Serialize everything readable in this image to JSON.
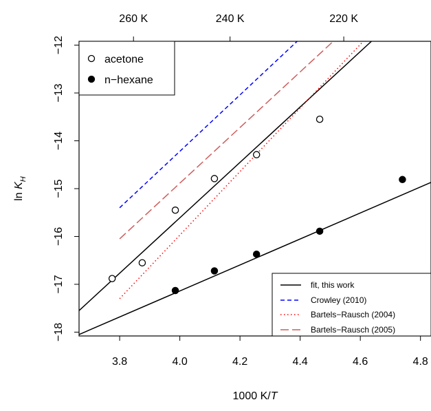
{
  "chart_data": {
    "type": "scatter",
    "xlabel_prefix": "1000 K/",
    "xlabel_italic": "T",
    "ylabel_prefix": "ln ",
    "ylabel_italic": "K",
    "ylabel_sub": "H",
    "xlim": [
      3.665,
      4.835
    ],
    "ylim": [
      -18.08,
      -11.92
    ],
    "x_ticks": [
      "3.8",
      "4.0",
      "4.2",
      "4.4",
      "4.6",
      "4.8"
    ],
    "y_ticks": [
      "-18",
      "-17",
      "-16",
      "-15",
      "-14",
      "-13",
      "-12"
    ],
    "top_axis_ticks": [
      {
        "label": "260 K",
        "x": 3.846
      },
      {
        "label": "240 K",
        "x": 4.167
      },
      {
        "label": "220 K",
        "x": 4.545
      }
    ],
    "point_series": [
      {
        "name": "acetone",
        "marker": "open-circle",
        "points": [
          [
            3.775,
            -16.88
          ],
          [
            3.875,
            -16.55
          ],
          [
            3.985,
            -15.45
          ],
          [
            4.115,
            -14.79
          ],
          [
            4.255,
            -14.29
          ],
          [
            4.465,
            -13.55
          ]
        ]
      },
      {
        "name": "n-hexane",
        "marker": "filled-circle",
        "points": [
          [
            3.985,
            -17.13
          ],
          [
            4.115,
            -16.72
          ],
          [
            4.255,
            -16.37
          ],
          [
            4.465,
            -15.89
          ],
          [
            4.74,
            -14.81
          ]
        ]
      }
    ],
    "line_series": [
      {
        "name": "fit, this work",
        "color": "#000000",
        "dash": "solid",
        "segments": [
          [
            [
              3.665,
              -17.55
            ],
            [
              4.637,
              -11.92
            ]
          ],
          [
            [
              3.665,
              -18.05
            ],
            [
              4.835,
              -14.87
            ]
          ]
        ]
      },
      {
        "name": "Crowley (2010)",
        "color": "#0000ff",
        "dash": "dashed",
        "segments": [
          [
            [
              3.8,
              -15.4
            ],
            [
              4.39,
              -11.92
            ]
          ]
        ]
      },
      {
        "name": "Bartels−Rausch (2004)",
        "color": "#ff0000",
        "dash": "dotted",
        "segments": [
          [
            [
              3.8,
              -17.3
            ],
            [
              4.61,
              -11.92
            ]
          ]
        ]
      },
      {
        "name": "Bartels−Rausch (2005)",
        "color": "#cd5c5c",
        "dash": "longdash",
        "segments": [
          [
            [
              3.8,
              -16.05
            ],
            [
              4.51,
              -11.92
            ]
          ]
        ]
      }
    ],
    "legends": {
      "points": {
        "position": "top-left",
        "items": [
          "acetone",
          "n−hexane"
        ]
      },
      "lines": {
        "position": "bottom-right",
        "items": [
          "fit, this work",
          "Crowley (2010)",
          "Bartels−Rausch (2004)",
          "Bartels−Rausch (2005)"
        ]
      }
    }
  }
}
